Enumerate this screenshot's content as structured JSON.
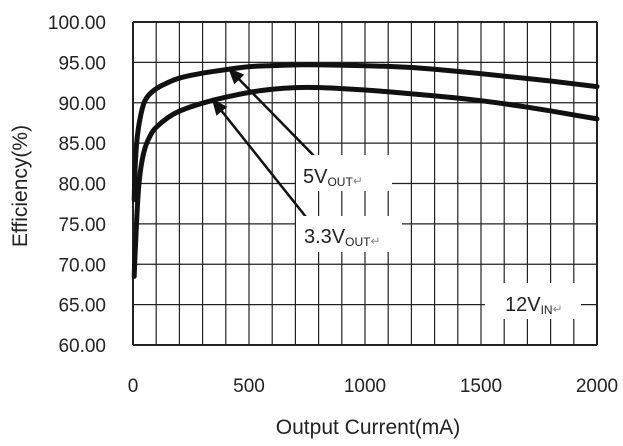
{
  "chart_data": {
    "type": "line",
    "xlabel": "Output Current(mA)",
    "ylabel": "Efficiency(%)",
    "xlim": [
      0,
      2000
    ],
    "ylim": [
      60,
      100
    ],
    "x_ticks": [
      "0",
      "500",
      "1000",
      "1500",
      "2000"
    ],
    "y_ticks": [
      "60.00",
      "65.00",
      "70.00",
      "75.00",
      "80.00",
      "85.00",
      "90.00",
      "95.00",
      "100.00"
    ],
    "grid": true,
    "series": [
      {
        "name": "5VOUT",
        "x": [
          5,
          10,
          20,
          40,
          60,
          100,
          150,
          200,
          300,
          400,
          500,
          600,
          700,
          800,
          1000,
          1200,
          1400,
          1600,
          1800,
          2000
        ],
        "y": [
          78,
          83,
          86.5,
          89.5,
          90.8,
          91.8,
          92.5,
          93.1,
          93.7,
          94.1,
          94.5,
          94.6,
          94.7,
          94.7,
          94.6,
          94.4,
          93.9,
          93.3,
          92.7,
          92.0
        ]
      },
      {
        "name": "3.3VOUT",
        "x": [
          5,
          10,
          20,
          30,
          50,
          80,
          100,
          150,
          200,
          300,
          400,
          500,
          600,
          700,
          800,
          1000,
          1200,
          1400,
          1600,
          1800,
          2000
        ],
        "y": [
          68.5,
          72,
          78,
          81.5,
          84.5,
          86.3,
          87,
          88.2,
          89,
          90,
          90.7,
          91.3,
          91.7,
          91.9,
          91.9,
          91.6,
          91.1,
          90.6,
          89.9,
          89.0,
          88.0
        ]
      }
    ],
    "annotations": [
      {
        "main": "5V",
        "sub": "OUT",
        "mark": "↵",
        "target_x": 410,
        "target_y": 94.3
      },
      {
        "main": "3.3V",
        "sub": "OUT",
        "mark": "↵",
        "target_x": 340,
        "target_y": 90.5
      },
      {
        "main": "12V",
        "sub": "IN",
        "mark": "↵"
      }
    ],
    "colors": {
      "line": "#111111",
      "grid": "#222222",
      "background": "#ffffff"
    }
  }
}
